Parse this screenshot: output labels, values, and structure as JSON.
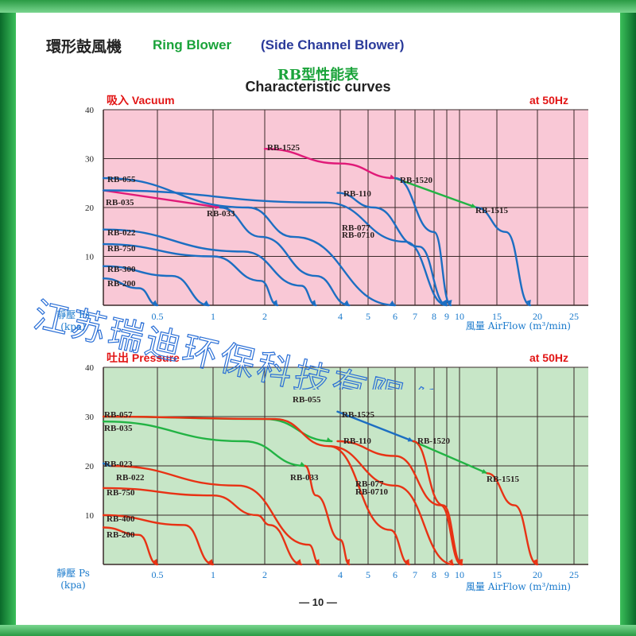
{
  "header": {
    "title_cn": "環形鼓風機",
    "title_en": "Ring Blower",
    "title_paren": "(Side Channel Blower)",
    "subtitle_cn": "RB型性能表",
    "subtitle_en": "Characteristic curves"
  },
  "watermark": "江苏瑞迪环保科技有限公司",
  "page_number": "— 10 —",
  "colors": {
    "vacuum_bg": "#f9c8d6",
    "pressure_bg": "#c7e6c7",
    "vacuum_curve": "#1c6ec2",
    "pressure_curve": "#e83214",
    "connector_magenta": "#e01a78",
    "connector_green": "#22b344",
    "title_red": "#e21515",
    "axis_blue": "#1a7acc"
  },
  "chart_data": [
    {
      "type": "line",
      "title": "吸入 Vacuum",
      "title_right": "at 50Hz",
      "ylabel": [
        "靜壓 Ps",
        "(kpa)"
      ],
      "xlabel": "風量 AirFlow (m³/min)",
      "x_scale": "log",
      "ylim": [
        0,
        40
      ],
      "yticks": [
        "10",
        "20",
        "30",
        "40"
      ],
      "xticks": [
        "0.5",
        "1",
        "2",
        "4",
        "5",
        "6",
        "7",
        "8",
        "9",
        "10",
        "15",
        "20",
        "25"
      ],
      "grid": true,
      "series": [
        {
          "name": "RB-200",
          "color": "blue",
          "points": [
            [
              0.3,
              5.5
            ],
            [
              0.42,
              3.5
            ],
            [
              0.5,
              0
            ]
          ]
        },
        {
          "name": "RB-300",
          "color": "blue",
          "points": [
            [
              0.3,
              8
            ],
            [
              0.6,
              6
            ],
            [
              0.95,
              0
            ]
          ]
        },
        {
          "name": "RB-750",
          "color": "blue",
          "points": [
            [
              0.3,
              12.5
            ],
            [
              1.0,
              10
            ],
            [
              1.9,
              5
            ],
            [
              2.25,
              0
            ]
          ]
        },
        {
          "name": "RB-022",
          "color": "blue",
          "points": [
            [
              0.3,
              15.5
            ],
            [
              1.5,
              11
            ],
            [
              2.8,
              4
            ],
            [
              3.2,
              0
            ]
          ]
        },
        {
          "name": "RB-035",
          "color": "magenta",
          "points": [
            [
              0.3,
              23.5
            ],
            [
              1.1,
              20
            ]
          ]
        },
        {
          "name": "RB-033",
          "color": "blue",
          "points": [
            [
              1.1,
              20
            ],
            [
              1.9,
              14
            ],
            [
              3.2,
              6
            ],
            [
              4.3,
              0
            ]
          ]
        },
        {
          "name": "RB-055",
          "color": "blue",
          "points": [
            [
              0.3,
              26
            ],
            [
              1.6,
              20
            ],
            [
              2.6,
              14
            ],
            [
              6,
              0
            ]
          ]
        },
        {
          "name": "RB-077 / RB-0710",
          "color": "blue",
          "points": [
            [
              0.3,
              23.5
            ],
            [
              3.5,
              21
            ],
            [
              6.5,
              13
            ],
            [
              9,
              0
            ]
          ]
        },
        {
          "name": "RB-110",
          "color": "blue",
          "points": [
            [
              3.9,
              23
            ],
            [
              5.2,
              20
            ],
            [
              7.2,
              12
            ],
            [
              9,
              0
            ]
          ]
        },
        {
          "name": "RB-1525",
          "color": "magenta",
          "points": [
            [
              2.0,
              32
            ],
            [
              4.0,
              29
            ],
            [
              6.0,
              26
            ]
          ]
        },
        {
          "name": "RB-1520",
          "color": "green",
          "points": [
            [
              6.0,
              26
            ],
            [
              12,
              20
            ]
          ]
        },
        {
          "name": "RB-1515",
          "color": "blue",
          "points": [
            [
              12,
              20
            ],
            [
              16,
              15
            ],
            [
              19,
              0
            ]
          ]
        },
        {
          "name": "RB-1520 drop",
          "color": "blue",
          "points": [
            [
              6.0,
              26
            ],
            [
              8.0,
              15
            ],
            [
              9.3,
              0
            ]
          ]
        }
      ],
      "labels": [
        "RB-055",
        "RB-035",
        "RB-033",
        "RB-022",
        "RB-750",
        "RB-300",
        "RB-200",
        "RB-1525",
        "RB-1520",
        "RB-110",
        "RB-077",
        "RB-0710",
        "RB-1515"
      ]
    },
    {
      "type": "line",
      "title": "吐出 Pressure",
      "title_right": "at 50Hz",
      "ylabel": [
        "靜壓 Ps",
        "(kpa)"
      ],
      "xlabel": "風量 AirFlow (m³/min)",
      "x_scale": "log",
      "ylim": [
        0,
        40
      ],
      "yticks": [
        "10",
        "20",
        "30",
        "40"
      ],
      "xticks": [
        "0.5",
        "1",
        "2",
        "4",
        "5",
        "6",
        "7",
        "8",
        "9",
        "10",
        "15",
        "20",
        "25"
      ],
      "grid": true,
      "series": [
        {
          "name": "RB-200",
          "color": "red",
          "points": [
            [
              0.3,
              7.5
            ],
            [
              0.42,
              6
            ],
            [
              0.5,
              0
            ]
          ]
        },
        {
          "name": "RB-400",
          "color": "red",
          "points": [
            [
              0.3,
              10
            ],
            [
              0.7,
              8
            ],
            [
              1.0,
              0
            ]
          ]
        },
        {
          "name": "RB-750",
          "color": "red",
          "points": [
            [
              0.3,
              15.5
            ],
            [
              1.0,
              14
            ],
            [
              1.8,
              10
            ],
            [
              2.1,
              8
            ],
            [
              2.8,
              0
            ]
          ]
        },
        {
          "name": "RB-022",
          "color": "red",
          "points": [
            [
              0.32,
              20
            ],
            [
              1.4,
              16
            ],
            [
              3.0,
              4
            ],
            [
              3.3,
              0
            ]
          ]
        },
        {
          "name": "RB-023",
          "color": "blue",
          "points": [
            [
              0.3,
              20.5
            ],
            [
              0.32,
              20
            ]
          ]
        },
        {
          "name": "RB-035",
          "color": "green",
          "points": [
            [
              0.3,
              29
            ],
            [
              1.5,
              25
            ],
            [
              2.9,
              20
            ]
          ]
        },
        {
          "name": "RB-033",
          "color": "red",
          "points": [
            [
              2.9,
              20
            ],
            [
              3.2,
              14
            ],
            [
              4.0,
              5
            ],
            [
              4.3,
              0
            ]
          ]
        },
        {
          "name": "RB-057",
          "color": "green",
          "points": [
            [
              0.3,
              30
            ],
            [
              2.0,
              29.5
            ],
            [
              3.7,
              25
            ]
          ]
        },
        {
          "name": "RB-055",
          "color": "red",
          "points": [
            [
              0.3,
              30
            ],
            [
              2.2,
              29.5
            ],
            [
              3.6,
              24
            ],
            [
              5.8,
              7
            ],
            [
              6.7,
              0
            ]
          ]
        },
        {
          "name": "RB-077 / RB-0710",
          "color": "red",
          "points": [
            [
              3.6,
              24
            ],
            [
              6.0,
              16
            ],
            [
              9.5,
              0
            ]
          ]
        },
        {
          "name": "RB-110",
          "color": "red",
          "points": [
            [
              3.9,
              25
            ],
            [
              6.0,
              22
            ],
            [
              8.5,
              12
            ],
            [
              10.2,
              0
            ]
          ]
        },
        {
          "name": "RB-1525",
          "color": "blue",
          "points": [
            [
              3.9,
              31
            ],
            [
              6.9,
              25
            ]
          ]
        },
        {
          "name": "RB-1520",
          "color": "green",
          "points": [
            [
              6.9,
              25
            ],
            [
              13.5,
              18.5
            ]
          ]
        },
        {
          "name": "RB-1520 drop",
          "color": "red",
          "points": [
            [
              6.9,
              25
            ],
            [
              8.7,
              12
            ],
            [
              10.3,
              0
            ]
          ]
        },
        {
          "name": "RB-1515",
          "color": "red",
          "points": [
            [
              13.5,
              18.5
            ],
            [
              17,
              12
            ],
            [
              20,
              0
            ]
          ]
        }
      ],
      "labels": [
        "RB-057",
        "RB-035",
        "RB-055",
        "RB-1525",
        "RB-110",
        "RB-1520",
        "RB-023",
        "RB-022",
        "RB-033",
        "RB-077",
        "RB-0710",
        "RB-1515",
        "RB-750",
        "RB-400",
        "RB-200"
      ]
    }
  ]
}
